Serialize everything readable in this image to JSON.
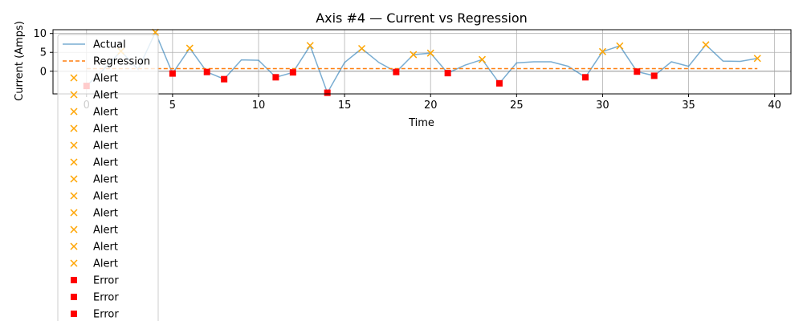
{
  "chart_data": {
    "type": "line",
    "title": "Axis #4 — Current vs Regression",
    "xlabel": "Time",
    "ylabel": "Current (Amps)",
    "xlim": [
      -1.95,
      40.95
    ],
    "ylim": [
      -6.0,
      11.0
    ],
    "xticks": [
      0,
      5,
      10,
      15,
      20,
      25,
      30,
      35,
      40
    ],
    "yticks": [
      0,
      5,
      10
    ],
    "grid": true,
    "legend_position": "top-left",
    "colors": {
      "actual": "#1f77b4",
      "regression": "#ff7f0e",
      "alert": "#ffa500",
      "error": "#ff0000"
    },
    "series": [
      {
        "name": "Actual",
        "kind": "line",
        "x": [
          0,
          1,
          2,
          3,
          4,
          5,
          6,
          7,
          8,
          9,
          10,
          11,
          12,
          13,
          14,
          15,
          16,
          17,
          18,
          19,
          20,
          21,
          22,
          23,
          24,
          25,
          26,
          27,
          28,
          29,
          30,
          31,
          32,
          33,
          34,
          35,
          36,
          37,
          38,
          39
        ],
        "y": [
          -3.9,
          0.5,
          5.3,
          0.5,
          10.3,
          -0.6,
          6.1,
          -0.2,
          -2.1,
          3.0,
          2.9,
          -1.6,
          -0.3,
          6.8,
          -5.7,
          2.3,
          6.0,
          2.3,
          -0.2,
          4.4,
          4.8,
          -0.5,
          1.6,
          3.1,
          -3.2,
          2.2,
          2.5,
          2.5,
          1.3,
          -1.6,
          5.2,
          6.7,
          -0.1,
          -1.2,
          2.5,
          1.3,
          7.0,
          2.7,
          2.6,
          3.4
        ]
      },
      {
        "name": "Regression",
        "kind": "dashed",
        "x": [
          0,
          39
        ],
        "y": [
          0.7,
          0.7
        ]
      }
    ],
    "alerts": {
      "label": "Alert",
      "points": [
        [
          2,
          5.3
        ],
        [
          4,
          10.3
        ],
        [
          6,
          6.1
        ],
        [
          13,
          6.8
        ],
        [
          16,
          6.0
        ],
        [
          19,
          4.4
        ],
        [
          20,
          4.8
        ],
        [
          23,
          3.1
        ],
        [
          30,
          5.2
        ],
        [
          31,
          6.7
        ],
        [
          36,
          7.0
        ],
        [
          39,
          3.4
        ]
      ]
    },
    "errors": {
      "label": "Error",
      "points": [
        [
          0,
          -3.9
        ],
        [
          5,
          -0.6
        ],
        [
          7,
          -0.2
        ],
        [
          8,
          -2.1
        ],
        [
          11,
          -1.6
        ],
        [
          12,
          -0.3
        ],
        [
          14,
          -5.7
        ],
        [
          18,
          -0.2
        ],
        [
          21,
          -0.5
        ],
        [
          24,
          -3.2
        ],
        [
          29,
          -1.6
        ],
        [
          32,
          -0.1
        ],
        [
          33,
          -1.2
        ]
      ]
    },
    "legend_entries": [
      {
        "label": "Actual",
        "kind": "line"
      },
      {
        "label": "Regression",
        "kind": "dashed"
      },
      {
        "label": "Alert",
        "kind": "alert"
      },
      {
        "label": "Alert",
        "kind": "alert"
      },
      {
        "label": "Alert",
        "kind": "alert"
      },
      {
        "label": "Alert",
        "kind": "alert"
      },
      {
        "label": "Alert",
        "kind": "alert"
      },
      {
        "label": "Alert",
        "kind": "alert"
      },
      {
        "label": "Alert",
        "kind": "alert"
      },
      {
        "label": "Alert",
        "kind": "alert"
      },
      {
        "label": "Alert",
        "kind": "alert"
      },
      {
        "label": "Alert",
        "kind": "alert"
      },
      {
        "label": "Alert",
        "kind": "alert"
      },
      {
        "label": "Alert",
        "kind": "alert"
      },
      {
        "label": "Error",
        "kind": "error"
      },
      {
        "label": "Error",
        "kind": "error"
      },
      {
        "label": "Error",
        "kind": "error"
      }
    ]
  }
}
